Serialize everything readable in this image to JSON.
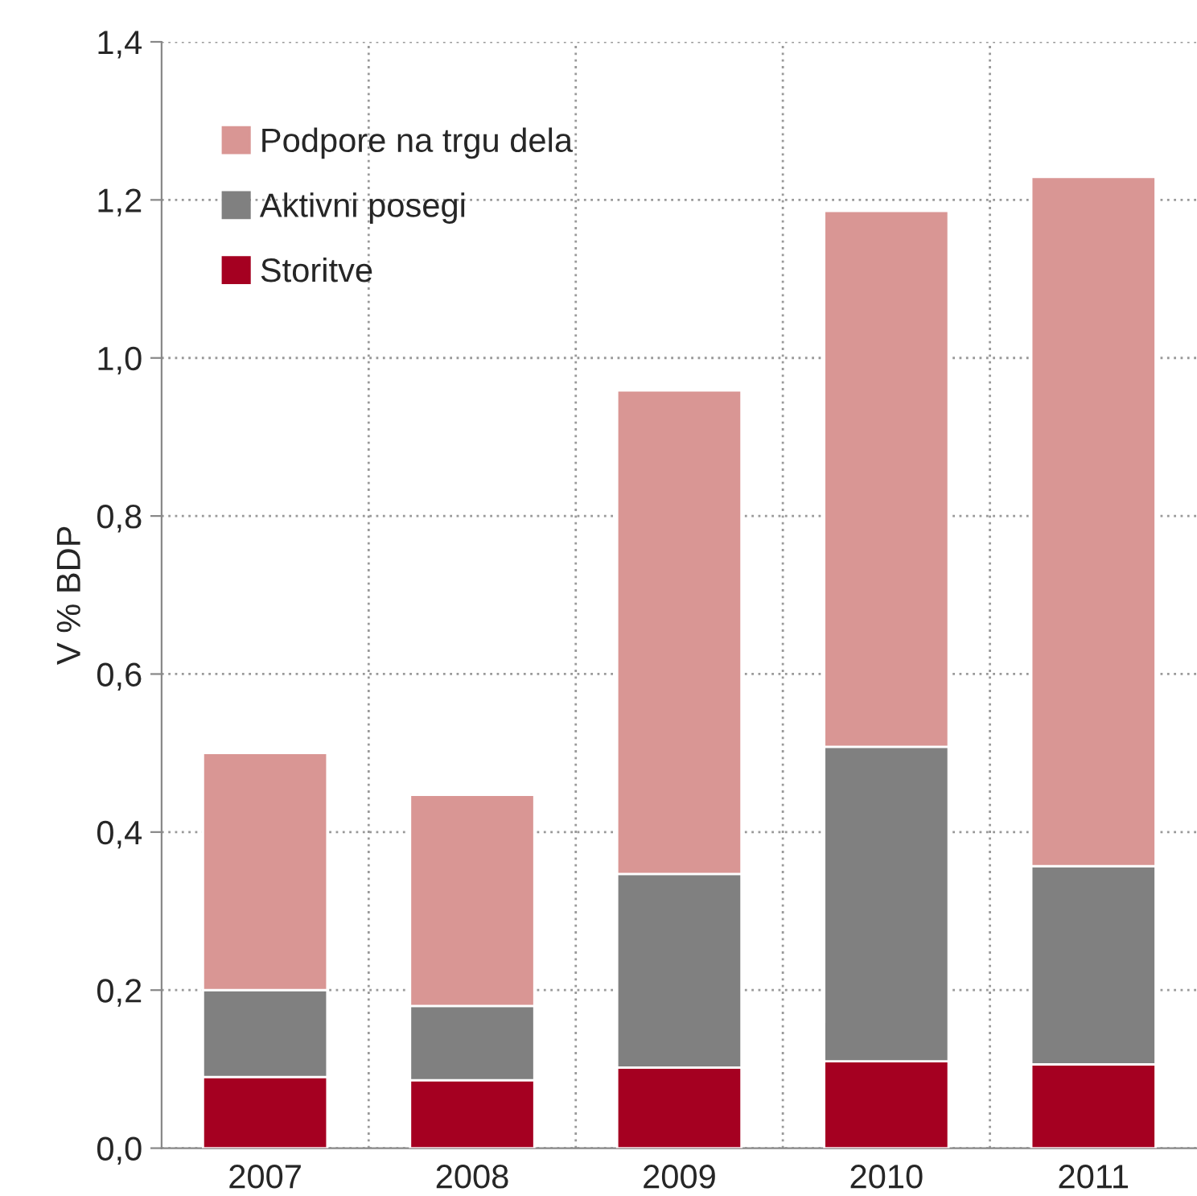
{
  "chart_data": {
    "type": "bar",
    "stacked": true,
    "ylabel": "V % BDP",
    "categories": [
      "2007",
      "2008",
      "2009",
      "2010",
      "2011"
    ],
    "series": [
      {
        "name": "Storitve",
        "color": "#a50021",
        "values": [
          0.09,
          0.086,
          0.102,
          0.11,
          0.106
        ]
      },
      {
        "name": "Aktivni posegi",
        "color": "#808080",
        "values": [
          0.11,
          0.094,
          0.245,
          0.398,
          0.251
        ]
      },
      {
        "name": "Podpore na trgu dela",
        "color": "#d99694",
        "values": [
          0.3,
          0.267,
          0.612,
          0.678,
          0.872
        ]
      }
    ],
    "ylim": [
      0,
      1.4
    ],
    "yticks": [
      {
        "value": 0,
        "label": "0,0"
      },
      {
        "value": 0.2,
        "label": "0,2"
      },
      {
        "value": 0.4,
        "label": "0,4"
      },
      {
        "value": 0.6,
        "label": "0,6"
      },
      {
        "value": 0.8,
        "label": "0,8"
      },
      {
        "value": 1.0,
        "label": "1,0"
      },
      {
        "value": 1.2,
        "label": "1,2"
      },
      {
        "value": 1.4,
        "label": "1,4"
      }
    ],
    "grid": true,
    "legend": "top left"
  }
}
